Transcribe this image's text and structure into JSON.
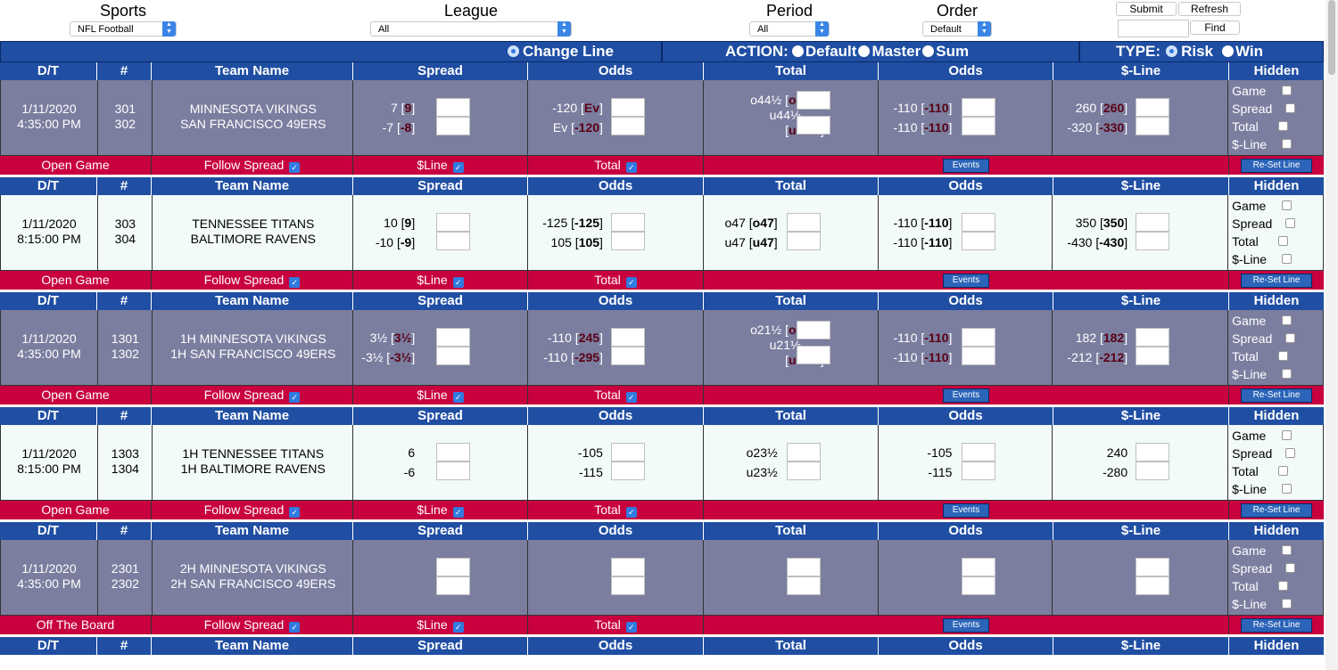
{
  "filters": {
    "sports": {
      "label": "Sports",
      "value": "NFL Football"
    },
    "league": {
      "label": "League",
      "value": "All"
    },
    "period": {
      "label": "Period",
      "value": "All"
    },
    "order": {
      "label": "Order",
      "value": "Default"
    },
    "submit_label": "Submit",
    "refresh_label": "Refresh",
    "find_label": "Find"
  },
  "action_bar": {
    "change_line": "Change Line",
    "action_label": "ACTION:",
    "default_label": "Default",
    "master_label": "Master",
    "sum_label": "Sum",
    "type_label": "TYPE:",
    "risk_label": "Risk",
    "win_label": "Win"
  },
  "headers": {
    "dt": "D/T",
    "num": "#",
    "team": "Team Name",
    "spread": "Spread",
    "odds": "Odds",
    "total": "Total",
    "odds2": "Odds",
    "moneyline": "$-Line",
    "hidden": "Hidden"
  },
  "hidden_labels": [
    "Game",
    "Spread",
    "Total",
    "$-Line"
  ],
  "footer_labels": {
    "follow_spread": "Follow Spread",
    "line": "$Line",
    "total": "Total",
    "events": "Events",
    "reset": "Re-Set Line"
  },
  "games": [
    {
      "theme": "dark",
      "status": "Open Game",
      "date": "1/11/2020",
      "time": "4:35:00 PM",
      "nums": [
        "301",
        "302"
      ],
      "teams": [
        "MINNESOTA VIKINGS",
        "SAN FRANCISCO 49ERS"
      ],
      "spread": [
        {
          "a": "7",
          "b": "9"
        },
        {
          "a": "-7",
          "b": "-8"
        }
      ],
      "odds": [
        {
          "a": "-120",
          "b": "Ev"
        },
        {
          "a": "Ev",
          "b": "-120"
        }
      ],
      "total_split": true,
      "total": [
        {
          "a": "o44½",
          "b": "o44½"
        },
        {
          "a": "u44½",
          "b": "u44½"
        }
      ],
      "odds2": [
        {
          "a": "-110",
          "b": "-110"
        },
        {
          "a": "-110",
          "b": "-110"
        }
      ],
      "moneyline": [
        {
          "a": "260",
          "b": "260"
        },
        {
          "a": "-320",
          "b": "-330"
        }
      ]
    },
    {
      "theme": "light",
      "status": "Open Game",
      "date": "1/11/2020",
      "time": "8:15:00 PM",
      "nums": [
        "303",
        "304"
      ],
      "teams": [
        "TENNESSEE TITANS",
        "BALTIMORE RAVENS"
      ],
      "spread": [
        {
          "a": "10",
          "b": "9"
        },
        {
          "a": "-10",
          "b": "-9"
        }
      ],
      "odds": [
        {
          "a": "-125",
          "b": "-125"
        },
        {
          "a": "105",
          "b": "105"
        }
      ],
      "total_split": false,
      "total": [
        {
          "a": "o47",
          "b": "o47"
        },
        {
          "a": "u47",
          "b": "u47"
        }
      ],
      "odds2": [
        {
          "a": "-110",
          "b": "-110"
        },
        {
          "a": "-110",
          "b": "-110"
        }
      ],
      "moneyline": [
        {
          "a": "350",
          "b": "350"
        },
        {
          "a": "-430",
          "b": "-430"
        }
      ]
    },
    {
      "theme": "dark",
      "status": "Open Game",
      "date": "1/11/2020",
      "time": "4:35:00 PM",
      "nums": [
        "1301",
        "1302"
      ],
      "teams": [
        "1H MINNESOTA VIKINGS",
        "1H SAN FRANCISCO 49ERS"
      ],
      "spread": [
        {
          "a": "3½",
          "b": "3½"
        },
        {
          "a": "-3½",
          "b": "-3½"
        }
      ],
      "odds": [
        {
          "a": "-110",
          "b": "245"
        },
        {
          "a": "-110",
          "b": "-295"
        }
      ],
      "total_split": true,
      "total": [
        {
          "a": "o21½",
          "b": "o21½"
        },
        {
          "a": "u21½",
          "b": "u21½"
        }
      ],
      "odds2": [
        {
          "a": "-110",
          "b": "-110"
        },
        {
          "a": "-110",
          "b": "-110"
        }
      ],
      "moneyline": [
        {
          "a": "182",
          "b": "182"
        },
        {
          "a": "-212",
          "b": "-212"
        }
      ]
    },
    {
      "theme": "light",
      "status": "Open Game",
      "date": "1/11/2020",
      "time": "8:15:00 PM",
      "nums": [
        "1303",
        "1304"
      ],
      "teams": [
        "1H TENNESSEE TITANS",
        "1H BALTIMORE RAVENS"
      ],
      "spread": [
        {
          "a": "6",
          "b": ""
        },
        {
          "a": "-6",
          "b": ""
        }
      ],
      "odds": [
        {
          "a": "-105",
          "b": ""
        },
        {
          "a": "-115",
          "b": ""
        }
      ],
      "total_split": false,
      "total": [
        {
          "a": "o23½",
          "b": ""
        },
        {
          "a": "u23½",
          "b": ""
        }
      ],
      "odds2": [
        {
          "a": "-105",
          "b": ""
        },
        {
          "a": "-115",
          "b": ""
        }
      ],
      "moneyline": [
        {
          "a": "240",
          "b": ""
        },
        {
          "a": "-280",
          "b": ""
        }
      ]
    },
    {
      "theme": "dark",
      "status": "Off The Board",
      "date": "1/11/2020",
      "time": "4:35:00 PM",
      "nums": [
        "2301",
        "2302"
      ],
      "teams": [
        "2H MINNESOTA VIKINGS",
        "2H SAN FRANCISCO 49ERS"
      ],
      "spread": [
        {
          "a": "",
          "b": ""
        },
        {
          "a": "",
          "b": ""
        }
      ],
      "odds": [
        {
          "a": "",
          "b": ""
        },
        {
          "a": "",
          "b": ""
        }
      ],
      "total_split": false,
      "total": [
        {
          "a": "",
          "b": ""
        },
        {
          "a": "",
          "b": ""
        }
      ],
      "odds2": [
        {
          "a": "",
          "b": ""
        },
        {
          "a": "",
          "b": ""
        }
      ],
      "moneyline": [
        {
          "a": "",
          "b": ""
        },
        {
          "a": "",
          "b": ""
        }
      ]
    }
  ],
  "colors": {
    "header_blue": "#1f4ea3",
    "footer_red": "#c8003e",
    "dark_row": "#7b7e9f",
    "light_row": "#f3fafa",
    "bracket_red": "#5a0014"
  }
}
